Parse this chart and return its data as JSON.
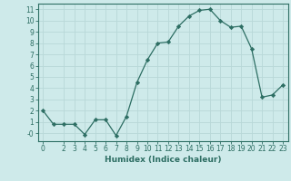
{
  "xlabel": "Humidex (Indice chaleur)",
  "x": [
    0,
    1,
    2,
    3,
    4,
    5,
    6,
    7,
    8,
    9,
    10,
    11,
    12,
    13,
    14,
    15,
    16,
    17,
    18,
    19,
    20,
    21,
    22,
    23
  ],
  "y": [
    2,
    0.8,
    0.8,
    0.8,
    -0.1,
    1.2,
    1.2,
    -0.2,
    1.5,
    4.5,
    6.5,
    8.0,
    8.1,
    9.5,
    10.4,
    10.9,
    11.0,
    10.0,
    9.4,
    9.5,
    7.5,
    3.2,
    3.4,
    4.3
  ],
  "line_color": "#2d6e63",
  "marker": "D",
  "marker_size": 2.2,
  "bg_color": "#ceeaea",
  "grid_color": "#b8d8d8",
  "ylim": [
    -0.7,
    11.5
  ],
  "xlim": [
    -0.5,
    23.5
  ],
  "yticks": [
    0,
    1,
    2,
    3,
    4,
    5,
    6,
    7,
    8,
    9,
    10,
    11
  ],
  "ytick_labels": [
    "-0",
    "1",
    "2",
    "3",
    "4",
    "5",
    "6",
    "7",
    "8",
    "9",
    "10",
    "11"
  ],
  "xticks": [
    0,
    2,
    3,
    4,
    5,
    6,
    7,
    8,
    9,
    10,
    11,
    12,
    13,
    14,
    15,
    16,
    17,
    18,
    19,
    20,
    21,
    22,
    23
  ],
  "tick_color": "#2d6e63",
  "axis_color": "#2d6e63",
  "label_fontsize": 6.5,
  "tick_fontsize": 5.5
}
